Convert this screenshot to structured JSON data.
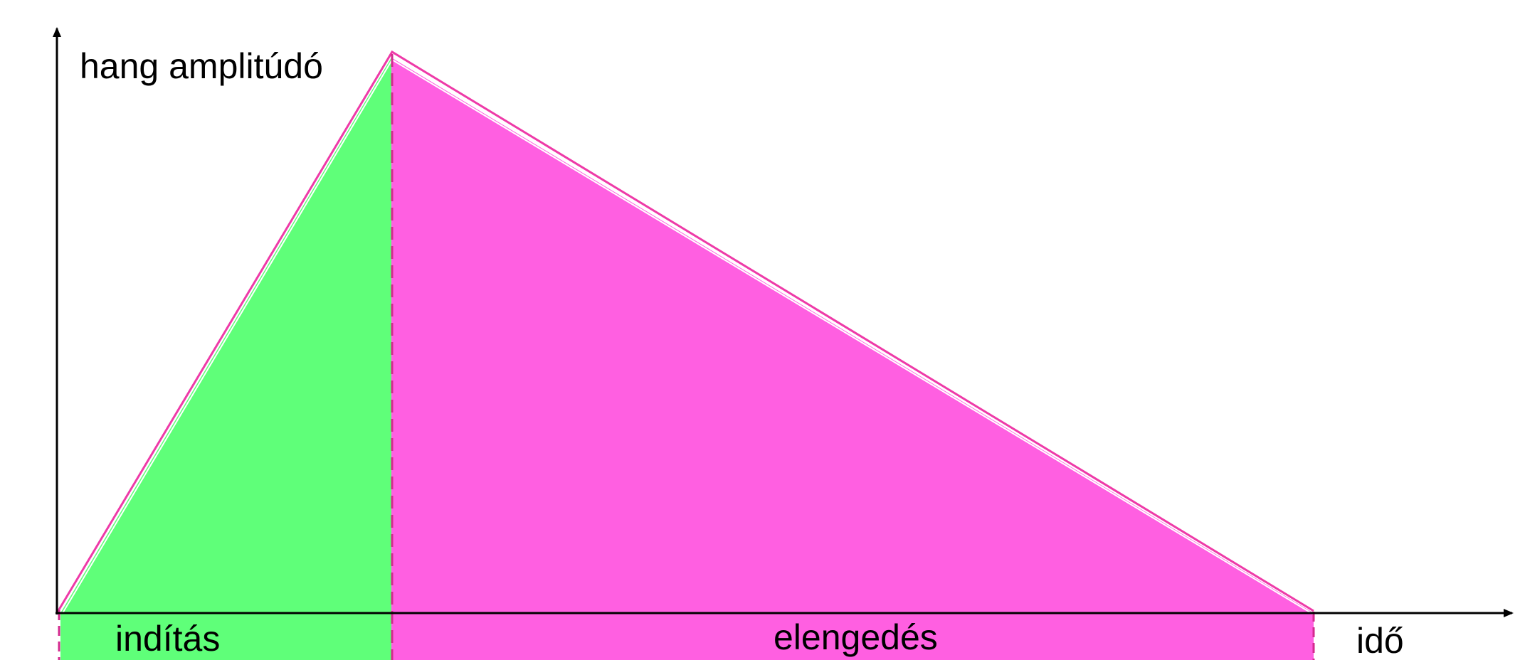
{
  "labels": {
    "y_axis": "hang amplitúdó",
    "x_axis": "idő",
    "attack_phase": "indítás",
    "release_phase": "elengedés"
  },
  "colors": {
    "attack_fill": "#5fff79",
    "release_fill": "#ff5fe1",
    "envelope_stroke": "#ee3aa8",
    "axis": "#000000"
  },
  "chart_data": {
    "type": "area",
    "xlabel": "idő",
    "ylabel": "hang amplitúdó",
    "segments": [
      {
        "name": "indítás",
        "x_start": 0,
        "x_end": 1,
        "y_start": 0,
        "y_end": 1
      },
      {
        "name": "elengedés",
        "x_start": 1,
        "x_end": 4.75,
        "y_start": 1,
        "y_end": 0
      }
    ]
  }
}
